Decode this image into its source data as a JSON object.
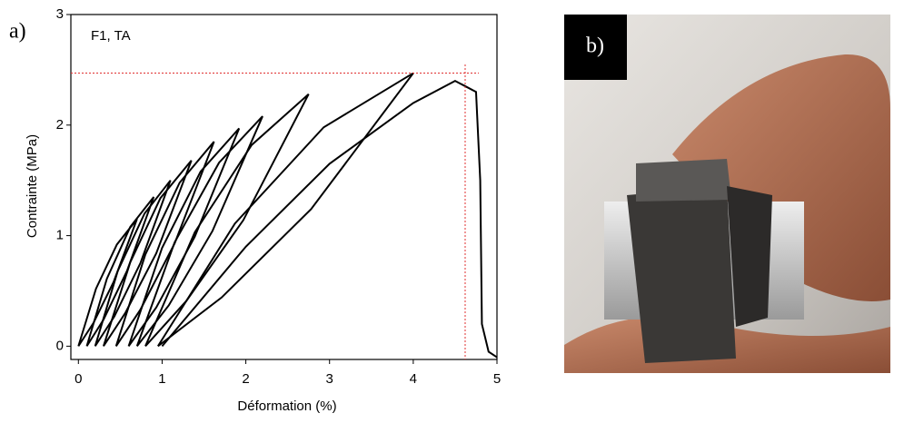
{
  "chart_data": {
    "type": "line",
    "panel_label": "a)",
    "annotation": "F1, TA",
    "xlabel": "Déformation (%)",
    "ylabel": "Contrainte (MPa)",
    "xlim": [
      -0.09,
      5
    ],
    "ylim": [
      -0.12,
      3
    ],
    "xticks": [
      0,
      1,
      2,
      3,
      4,
      5
    ],
    "yticks": [
      0,
      1,
      2,
      3
    ],
    "reference_lines": {
      "x": 4.62,
      "y": 2.47,
      "color": "#e03030"
    },
    "series": [
      {
        "color": "#000000",
        "x": [
          0,
          0.21,
          0.46,
          0.7,
          0.42,
          0.18,
          0
        ],
        "values": [
          0,
          0.52,
          0.92,
          1.15,
          0.58,
          0.21,
          0
        ]
      },
      {
        "color": "#000000",
        "x": [
          0.1,
          0.34,
          0.62,
          0.9,
          0.58,
          0.3,
          0.1
        ],
        "values": [
          0,
          0.61,
          1.08,
          1.35,
          0.68,
          0.24,
          0
        ]
      },
      {
        "color": "#000000",
        "x": [
          0.2,
          0.47,
          0.79,
          1.1,
          0.74,
          0.43,
          0.2
        ],
        "values": [
          0,
          0.68,
          1.2,
          1.5,
          0.75,
          0.27,
          0
        ]
      },
      {
        "color": "#000000",
        "x": [
          0.3,
          0.62,
          0.98,
          1.35,
          0.93,
          0.56,
          0.3
        ],
        "values": [
          0,
          0.76,
          1.34,
          1.68,
          0.84,
          0.3,
          0
        ]
      },
      {
        "color": "#000000",
        "x": [
          0.45,
          0.8,
          1.21,
          1.62,
          1.15,
          0.74,
          0.45
        ],
        "values": [
          0,
          0.83,
          1.48,
          1.85,
          0.93,
          0.33,
          0
        ]
      },
      {
        "color": "#000000",
        "x": [
          0.6,
          1.0,
          1.46,
          1.92,
          1.39,
          0.93,
          0.6
        ],
        "values": [
          0,
          0.89,
          1.58,
          1.97,
          0.99,
          0.35,
          0
        ]
      },
      {
        "color": "#000000",
        "x": [
          0.7,
          1.15,
          1.68,
          2.2,
          1.6,
          1.08,
          0.7
        ],
        "values": [
          0,
          0.94,
          1.66,
          2.08,
          1.04,
          0.37,
          0
        ]
      },
      {
        "color": "#000000",
        "x": [
          0.8,
          1.39,
          2.07,
          2.75,
          1.97,
          1.29,
          0.8
        ],
        "values": [
          0,
          1.03,
          1.82,
          2.28,
          1.14,
          0.41,
          0
        ]
      },
      {
        "color": "#000000",
        "x": [
          0.95,
          1.87,
          2.93,
          4.0,
          2.78,
          1.71,
          0.95
        ],
        "values": [
          0,
          1.11,
          1.98,
          2.47,
          1.24,
          0.44,
          0
        ]
      },
      {
        "color": "#000000",
        "x": [
          1.0,
          2.0,
          3.0,
          4.0,
          4.5,
          4.75,
          4.8,
          4.82,
          4.9,
          5.0
        ],
        "values": [
          0,
          0.9,
          1.65,
          2.2,
          2.4,
          2.3,
          1.5,
          0.2,
          -0.05,
          -0.1
        ]
      }
    ]
  },
  "photo": {
    "label": "b)"
  }
}
